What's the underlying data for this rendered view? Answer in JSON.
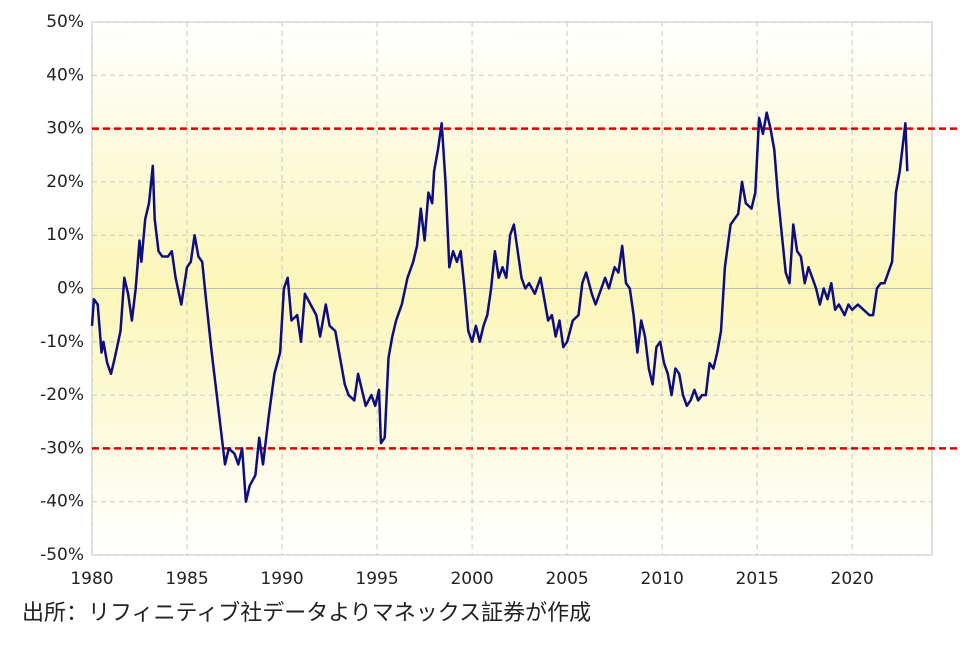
{
  "chart_data": {
    "type": "line",
    "source": "出所：リフィニティブ社データよりマネックス証券が作成",
    "x": [
      1980.0,
      1980.1,
      1980.3,
      1980.5,
      1980.6,
      1980.8,
      1981.0,
      1981.2,
      1981.5,
      1981.7,
      1981.9,
      1982.1,
      1982.3,
      1982.5,
      1982.6,
      1982.8,
      1983.0,
      1983.2,
      1983.3,
      1983.5,
      1983.7,
      1984.0,
      1984.2,
      1984.4,
      1984.7,
      1985.0,
      1985.2,
      1985.4,
      1985.6,
      1985.8,
      1986.0,
      1986.3,
      1986.5,
      1986.8,
      1987.0,
      1987.2,
      1987.5,
      1987.7,
      1987.9,
      1988.1,
      1988.3,
      1988.6,
      1988.8,
      1989.0,
      1989.3,
      1989.6,
      1989.9,
      1990.1,
      1990.3,
      1990.5,
      1990.8,
      1991.0,
      1991.2,
      1991.5,
      1991.8,
      1992.0,
      1992.3,
      1992.5,
      1992.8,
      1993.0,
      1993.3,
      1993.5,
      1993.8,
      1994.0,
      1994.2,
      1994.4,
      1994.7,
      1994.9,
      1995.1,
      1995.2,
      1995.4,
      1995.6,
      1995.8,
      1996.0,
      1996.3,
      1996.6,
      1996.9,
      1997.1,
      1997.3,
      1997.5,
      1997.7,
      1997.9,
      1998.0,
      1998.2,
      1998.4,
      1998.6,
      1998.8,
      1999.0,
      1999.2,
      1999.4,
      1999.6,
      1999.8,
      2000.0,
      2000.2,
      2000.4,
      2000.6,
      2000.8,
      2001.0,
      2001.2,
      2001.4,
      2001.6,
      2001.8,
      2002.0,
      2002.2,
      2002.4,
      2002.6,
      2002.8,
      2003.0,
      2003.3,
      2003.6,
      2003.8,
      2004.0,
      2004.2,
      2004.4,
      2004.6,
      2004.8,
      2005.0,
      2005.3,
      2005.6,
      2005.8,
      2006.0,
      2006.3,
      2006.5,
      2006.8,
      2007.0,
      2007.2,
      2007.5,
      2007.7,
      2007.9,
      2008.1,
      2008.3,
      2008.5,
      2008.7,
      2008.9,
      2009.1,
      2009.3,
      2009.5,
      2009.7,
      2009.9,
      2010.1,
      2010.3,
      2010.5,
      2010.7,
      2010.9,
      2011.1,
      2011.3,
      2011.5,
      2011.7,
      2011.9,
      2012.1,
      2012.3,
      2012.5,
      2012.7,
      2012.9,
      2013.1,
      2013.3,
      2013.6,
      2013.8,
      2014.0,
      2014.2,
      2014.4,
      2014.7,
      2014.9,
      2015.1,
      2015.3,
      2015.5,
      2015.7,
      2015.9,
      2016.1,
      2016.3,
      2016.5,
      2016.7,
      2016.9,
      2017.1,
      2017.3,
      2017.5,
      2017.7,
      2017.9,
      2018.1,
      2018.3,
      2018.5,
      2018.7,
      2018.9,
      2019.1,
      2019.3,
      2019.6,
      2019.8,
      2020.0,
      2020.3,
      2020.6,
      2020.9,
      2021.1,
      2021.3,
      2021.5,
      2021.7,
      2021.9,
      2022.1,
      2022.3,
      2022.5,
      2022.7,
      2022.8,
      2022.9
    ],
    "series": [
      {
        "color": "#0d0d80",
        "values": [
          -7,
          -2,
          -3,
          -12,
          -10,
          -14,
          -16,
          -13,
          -8,
          2,
          -1,
          -6,
          0,
          9,
          5,
          13,
          16,
          23,
          13,
          7,
          6,
          6,
          7,
          2,
          -3,
          4,
          5,
          10,
          6,
          5,
          -2,
          -12,
          -18,
          -27,
          -33,
          -30,
          -31,
          -33,
          -30,
          -40,
          -37,
          -35,
          -28,
          -33,
          -24,
          -16,
          -12,
          0,
          2,
          -6,
          -5,
          -10,
          -1,
          -3,
          -5,
          -9,
          -3,
          -7,
          -8,
          -12,
          -18,
          -20,
          -21,
          -16,
          -19,
          -22,
          -20,
          -22,
          -19,
          -29,
          -28,
          -13,
          -9,
          -6,
          -3,
          2,
          5,
          8,
          15,
          9,
          18,
          16,
          22,
          26,
          31,
          20,
          4,
          7,
          5,
          7,
          0,
          -8,
          -10,
          -7,
          -10,
          -7,
          -5,
          0,
          7,
          2,
          4,
          2,
          10,
          12,
          7,
          2,
          0,
          1,
          -1,
          2,
          -2,
          -6,
          -5,
          -9,
          -6,
          -11,
          -10,
          -6,
          -5,
          1,
          3,
          -1,
          -3,
          0,
          2,
          0,
          4,
          3,
          8,
          1,
          0,
          -5,
          -12,
          -6,
          -9,
          -15,
          -18,
          -11,
          -10,
          -14,
          -16,
          -20,
          -15,
          -16,
          -20,
          -22,
          -21,
          -19,
          -21,
          -20,
          -20,
          -14,
          -15,
          -12,
          -8,
          4,
          12,
          13,
          14,
          20,
          16,
          15,
          18,
          32,
          29,
          33,
          30,
          26,
          17,
          10,
          3,
          1,
          12,
          7,
          6,
          1,
          4,
          2,
          0,
          -3,
          0,
          -2,
          1,
          -4,
          -3,
          -5,
          -3,
          -4,
          -3,
          -4,
          -5,
          -5,
          0,
          1,
          1,
          3,
          5,
          18,
          22,
          28,
          31,
          22
        ]
      }
    ],
    "xlim": [
      1980,
      2024.2
    ],
    "xticks": [
      1980,
      1985,
      1990,
      1995,
      2000,
      2005,
      2010,
      2015,
      2020
    ],
    "ylim": [
      -50,
      50
    ],
    "yticks": [
      {
        "value": -50,
        "label": "-50%"
      },
      {
        "value": -40,
        "label": "-40%"
      },
      {
        "value": -30,
        "label": "-30%"
      },
      {
        "value": -20,
        "label": "-20%"
      },
      {
        "value": -10,
        "label": "-10%"
      },
      {
        "value": 0,
        "label": "0%"
      },
      {
        "value": 10,
        "label": "10%"
      },
      {
        "value": 20,
        "label": "20%"
      },
      {
        "value": 30,
        "label": "30%"
      },
      {
        "value": 40,
        "label": "40%"
      },
      {
        "value": 50,
        "label": "50%"
      }
    ],
    "grid": true,
    "negative_tick_color": "#e00000",
    "hlines": [
      30,
      -30
    ],
    "hline_color": "#dd0000"
  }
}
